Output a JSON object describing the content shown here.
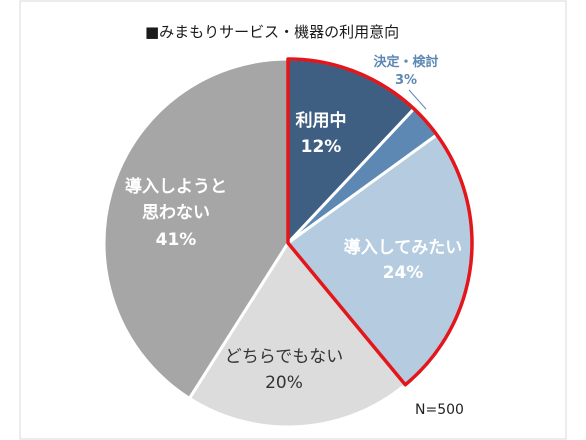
{
  "chart_data": {
    "type": "pie",
    "title": "■みまもりサービス・機器の利用意向",
    "note": "N=500",
    "slices": [
      {
        "name": "利用中",
        "value": 12,
        "value_label": "12%",
        "color": "#3f5f82"
      },
      {
        "name": "決定・検討",
        "value": 3,
        "value_label": "3%",
        "color": "#5d88b3"
      },
      {
        "name": "導入してみたい",
        "value": 24,
        "value_label": "24%",
        "color": "#b4cbe0"
      },
      {
        "name": "どちらでもない",
        "value": 20,
        "value_label": "20%",
        "color": "#dcdcdc"
      },
      {
        "name": "導入しようと思わない",
        "value": 41,
        "value_label": "41%",
        "color": "#a6a6a6"
      }
    ],
    "highlight": {
      "slices": [
        "利用中",
        "決定・検討",
        "導入してみたい"
      ],
      "color": "#e3161b"
    },
    "legend": "none"
  },
  "labels": {
    "title": "■みまもりサービス・機器の利用意向",
    "n": "N=500",
    "riyochu_name": "利用中",
    "riyochu_pct": "12%",
    "kettei_name": "決定・検討",
    "kettei_pct": "3%",
    "donyu_name": "導入してみたい",
    "donyu_pct": "24%",
    "dochira_name": "どちらでもない",
    "dochira_pct": "20%",
    "omowanai_line1": "導入しようと",
    "omowanai_line2": "思わない",
    "omowanai_pct": "41%"
  }
}
